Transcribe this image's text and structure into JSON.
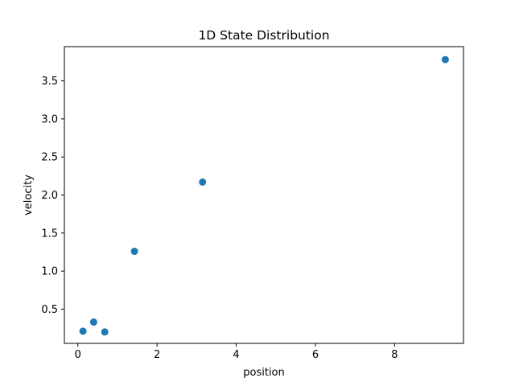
{
  "chart_data": {
    "type": "scatter",
    "title": "1D State Distribution",
    "xlabel": "position",
    "ylabel": "velocity",
    "xlim": [
      -0.34,
      9.74
    ],
    "ylim": [
      0.05,
      3.95
    ],
    "xticks": [
      0,
      2,
      4,
      6,
      8
    ],
    "xtick_labels": [
      "0",
      "2",
      "4",
      "6",
      "8"
    ],
    "yticks": [
      0.5,
      1.0,
      1.5,
      2.0,
      2.5,
      3.0,
      3.5
    ],
    "ytick_labels": [
      "0.5",
      "1.0",
      "1.5",
      "2.0",
      "2.5",
      "3.0",
      "3.5"
    ],
    "grid": false,
    "legend": false,
    "marker_color": "#1f77b4",
    "points": [
      {
        "x": 0.13,
        "y": 0.21
      },
      {
        "x": 0.4,
        "y": 0.33
      },
      {
        "x": 0.68,
        "y": 0.2
      },
      {
        "x": 1.43,
        "y": 1.26
      },
      {
        "x": 3.15,
        "y": 2.17
      },
      {
        "x": 9.28,
        "y": 3.78
      }
    ]
  }
}
